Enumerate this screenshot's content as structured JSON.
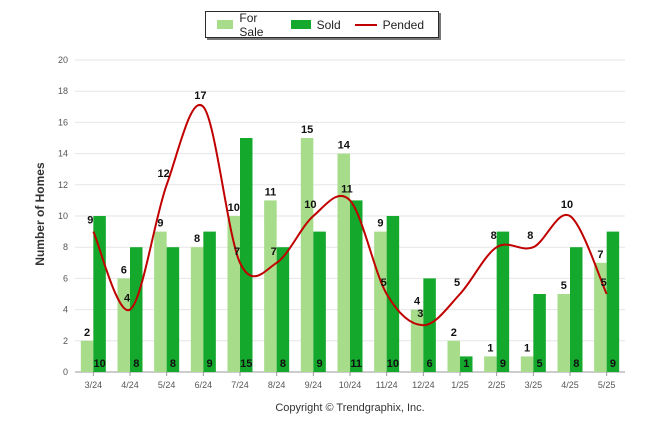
{
  "chart_data": {
    "type": "bar",
    "categories": [
      "3/24",
      "4/24",
      "5/24",
      "6/24",
      "7/24",
      "8/24",
      "9/24",
      "10/24",
      "11/24",
      "12/24",
      "1/25",
      "2/25",
      "3/25",
      "4/25",
      "5/25"
    ],
    "series": [
      {
        "name": "For Sale",
        "kind": "bar",
        "color": "#a6dc8a",
        "values": [
          2,
          6,
          9,
          8,
          10,
          11,
          15,
          14,
          9,
          4,
          2,
          1,
          1,
          5,
          7
        ]
      },
      {
        "name": "Sold",
        "kind": "bar",
        "color": "#14a82d",
        "values": [
          10,
          8,
          8,
          9,
          15,
          8,
          9,
          11,
          10,
          6,
          1,
          9,
          5,
          8,
          9
        ]
      },
      {
        "name": "Pended",
        "kind": "line",
        "color": "#c00000",
        "values": [
          9,
          4,
          12,
          17,
          7,
          7,
          10,
          11,
          5,
          3,
          5,
          8,
          8,
          10,
          5
        ]
      }
    ],
    "ylabel": "Number of Homes",
    "ylim": [
      0,
      20
    ],
    "yticks": [
      0,
      2,
      4,
      6,
      8,
      10,
      12,
      14,
      16,
      18,
      20
    ],
    "grid": true,
    "legend_position": "top-center"
  },
  "footer": {
    "copyright": "Copyright © Trendgraphix, Inc."
  }
}
